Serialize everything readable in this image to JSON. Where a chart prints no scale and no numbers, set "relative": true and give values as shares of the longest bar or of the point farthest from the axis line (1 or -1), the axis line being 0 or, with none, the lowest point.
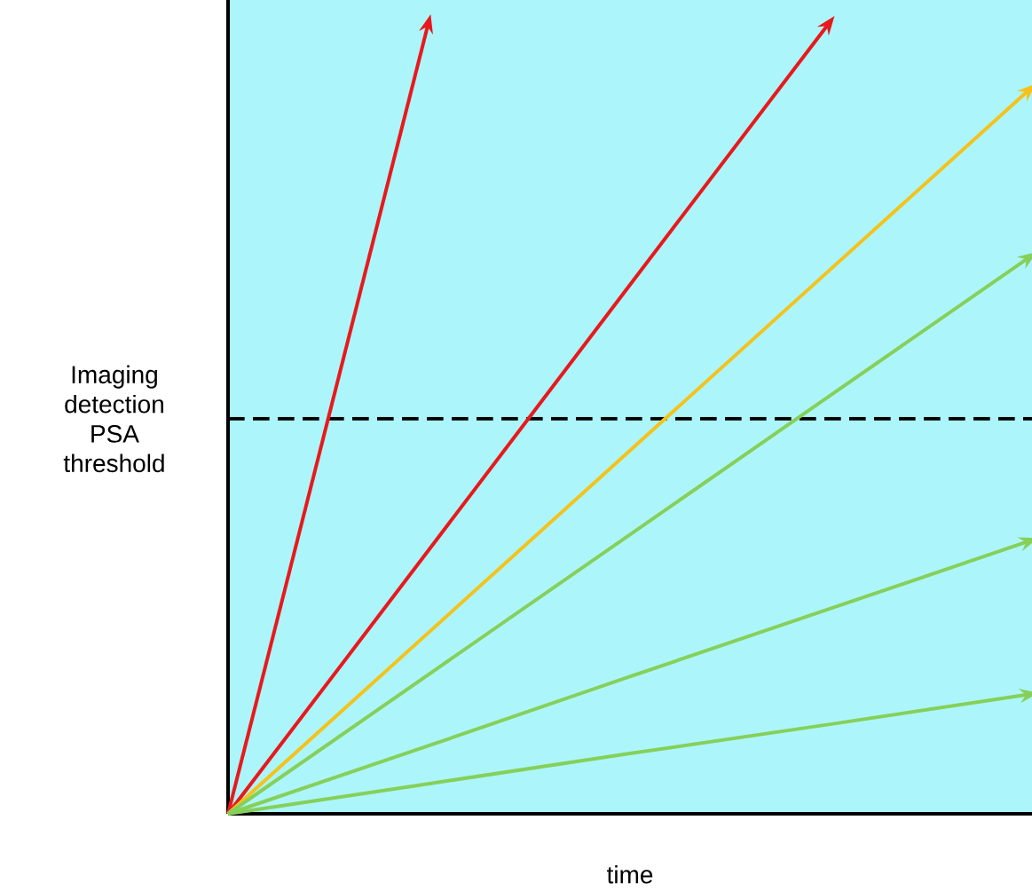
{
  "chart_data": {
    "type": "line",
    "relative": true,
    "xlabel": "time",
    "categories": [
      null,
      null,
      null,
      null,
      null
    ],
    "series": [
      {
        "color": "#e8191c",
        "values": [
          0,
          1,
          null,
          null,
          null
        ]
      },
      {
        "color": "#e8191c",
        "values": [
          0,
          0.333,
          0.667,
          1,
          null
        ]
      },
      {
        "color": "#f5c21b",
        "values": [
          0,
          0.229,
          0.458,
          0.687,
          0.916
        ]
      },
      {
        "color": "#86d05a",
        "values": [
          0,
          0.176,
          0.352,
          0.528,
          0.704
        ]
      },
      {
        "color": "#86d05a",
        "values": [
          0,
          0.086,
          0.173,
          0.259,
          0.345
        ]
      },
      {
        "color": "#86d05a",
        "values": [
          0,
          0.038,
          0.076,
          0.113,
          0.151
        ]
      }
    ],
    "ref_lines": [
      {
        "axis": "y",
        "value": 0.5,
        "label": "Imaging detection PSA threshold",
        "color": "#000000",
        "line_style": "dashed"
      }
    ]
  }
}
